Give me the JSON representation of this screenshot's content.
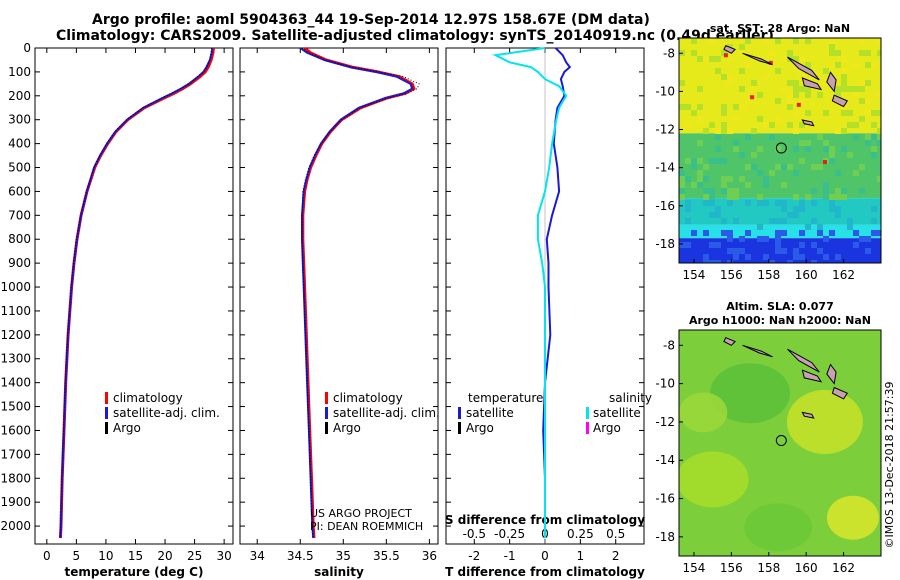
{
  "header": {
    "line1": "Argo profile: aoml 5904363_44 19-Sep-2014 12.97S 158.67E (DM data)",
    "line2": "Climatology: CARS2009. Satellite-adjusted climatology: synTS_20140919.nc (0.49d earlier)"
  },
  "colors": {
    "climatology": "#ff0000",
    "satellite": "#1a1ad6",
    "argo": "#000000",
    "sal_satellite": "#00e5ee",
    "sal_argo": "#ff00ff"
  },
  "depth_axis": {
    "ticks": [
      "0",
      "100",
      "200",
      "300",
      "400",
      "500",
      "600",
      "700",
      "800",
      "900",
      "1000",
      "1100",
      "1200",
      "1300",
      "1400",
      "1500",
      "1600",
      "1700",
      "1800",
      "1900",
      "2000"
    ],
    "range": [
      0,
      2075
    ]
  },
  "chart_data": [
    {
      "type": "line",
      "id": "temperature",
      "xlabel": "temperature (deg C)",
      "xlim": [
        -2,
        31.5
      ],
      "xticks": [
        "0",
        "5",
        "10",
        "15",
        "20",
        "25",
        "30"
      ],
      "ylim": [
        2075,
        0
      ],
      "legend": [
        "climatology",
        "satellite-adj. clim.",
        "Argo"
      ],
      "depths": [
        0,
        20,
        50,
        80,
        100,
        120,
        150,
        170,
        190,
        210,
        250,
        300,
        350,
        400,
        450,
        500,
        600,
        700,
        800,
        900,
        1000,
        1200,
        1400,
        1600,
        1800,
        2000,
        2050
      ],
      "series": [
        {
          "name": "climatology",
          "values": [
            28.2,
            28.1,
            27.8,
            27.3,
            26.8,
            25.9,
            24.3,
            23.0,
            21.5,
            19.8,
            16.5,
            13.7,
            11.7,
            10.3,
            9.1,
            8.1,
            6.8,
            5.8,
            5.1,
            4.6,
            4.2,
            3.6,
            3.2,
            2.9,
            2.6,
            2.4,
            2.3
          ]
        },
        {
          "name": "satellite-adj. clim.",
          "values": [
            28.0,
            27.9,
            27.6,
            27.0,
            26.5,
            25.6,
            24.0,
            22.7,
            21.2,
            19.5,
            16.3,
            13.6,
            11.6,
            10.2,
            9.0,
            8.0,
            6.8,
            5.8,
            5.1,
            4.6,
            4.2,
            3.6,
            3.2,
            2.9,
            2.6,
            2.4,
            2.3
          ]
        },
        {
          "name": "Argo",
          "values": [
            27.9,
            27.8,
            27.5,
            27.1,
            26.6,
            25.5,
            24.2,
            22.6,
            21.0,
            19.4,
            16.2,
            13.5,
            11.5,
            10.1,
            9.0,
            8.0,
            6.7,
            5.7,
            5.0,
            4.5,
            4.1,
            3.5,
            3.1,
            2.8,
            2.5,
            2.3,
            2.3
          ]
        }
      ],
      "annotations": []
    },
    {
      "type": "line",
      "id": "salinity",
      "xlabel": "salinity",
      "xlim": [
        33.8,
        36.1
      ],
      "xticks": [
        "34",
        "34.5",
        "35",
        "35.5",
        "36"
      ],
      "ylim": [
        2075,
        0
      ],
      "legend": [
        "climatology",
        "satellite-adj. clim.",
        "Argo"
      ],
      "depths": [
        0,
        20,
        50,
        80,
        100,
        120,
        150,
        170,
        190,
        210,
        250,
        300,
        350,
        400,
        450,
        500,
        550,
        600,
        700,
        800,
        900,
        1000,
        1200,
        1400,
        1600,
        1800,
        2000,
        2050
      ],
      "series": [
        {
          "name": "climatology",
          "values": [
            34.55,
            34.62,
            34.8,
            35.1,
            35.4,
            35.65,
            35.8,
            35.82,
            35.72,
            35.5,
            35.2,
            34.98,
            34.85,
            34.75,
            34.68,
            34.62,
            34.58,
            34.55,
            34.53,
            34.53,
            34.54,
            34.55,
            34.57,
            34.59,
            34.61,
            34.63,
            34.65,
            34.66
          ]
        },
        {
          "name": "satellite-adj. clim.",
          "values": [
            34.5,
            34.58,
            34.78,
            35.08,
            35.38,
            35.62,
            35.78,
            35.8,
            35.7,
            35.48,
            35.18,
            34.97,
            34.84,
            34.74,
            34.67,
            34.61,
            34.57,
            34.54,
            34.52,
            34.52,
            34.53,
            34.54,
            34.56,
            34.58,
            34.6,
            34.62,
            34.64,
            34.65
          ]
        },
        {
          "name": "Argo",
          "values": [
            34.52,
            34.6,
            34.8,
            35.1,
            35.42,
            35.7,
            35.88,
            35.86,
            35.74,
            35.52,
            35.2,
            34.98,
            34.85,
            34.74,
            34.66,
            34.6,
            34.56,
            34.53,
            34.52,
            34.52,
            34.53,
            34.54,
            34.56,
            34.58,
            34.6,
            34.62,
            34.64,
            34.65
          ]
        }
      ],
      "annotations": [
        "US ARGO PROJECT",
        "PI: DEAN ROEMMICH"
      ]
    },
    {
      "type": "line",
      "id": "differences",
      "xlabel": "T difference from climatology",
      "xlabel_top": "S difference from climatology",
      "xlim": [
        -2.8,
        2.8
      ],
      "xticks": [
        "-2",
        "-1",
        "0",
        "1",
        "2"
      ],
      "xticks_top": [
        "-0.5",
        "-0.25",
        "0",
        "0.25",
        "0.5"
      ],
      "ylim": [
        2075,
        0
      ],
      "legend_left": {
        "heading": "temperature",
        "items": [
          "satellite",
          "Argo"
        ]
      },
      "legend_right": {
        "heading": "salinity",
        "items": [
          "satellite",
          "Argo"
        ]
      },
      "depths": [
        0,
        30,
        60,
        80,
        100,
        130,
        160,
        200,
        250,
        300,
        400,
        500,
        600,
        700,
        800,
        900,
        1000,
        1200,
        1400,
        1600,
        1800,
        2000,
        2050
      ],
      "series": [
        {
          "name": "temperature satellite",
          "values": [
            0.3,
            0.5,
            0.6,
            0.7,
            0.55,
            0.45,
            0.5,
            0.55,
            0.35,
            0.3,
            0.25,
            0.35,
            0.4,
            0.2,
            0.05,
            0.1,
            0.1,
            0.15,
            0.0,
            -0.05,
            0.0,
            0.0,
            0.0
          ]
        },
        {
          "name": "salinity satellite",
          "values": [
            0.0,
            -0.35,
            -0.25,
            -0.1,
            -0.05,
            0.0,
            0.1,
            0.15,
            0.1,
            0.08,
            0.05,
            0.03,
            0.0,
            -0.05,
            -0.05,
            -0.02,
            0.0,
            0.0,
            0.0,
            0.0,
            0.0,
            0.0,
            0.0
          ]
        }
      ],
      "annotations": []
    },
    {
      "type": "heatmap",
      "id": "sst_map",
      "title": "sat. SST: 28 Argo: NaN",
      "xticks": [
        "154",
        "156",
        "158",
        "160",
        "162"
      ],
      "yticks": [
        "-8",
        "-10",
        "-12",
        "-14",
        "-16",
        "-18"
      ],
      "xlim": [
        153.2,
        164.0
      ],
      "ylim": [
        -19.0,
        -7.2
      ],
      "marker": {
        "lon": 158.67,
        "lat": -12.97
      }
    },
    {
      "type": "heatmap",
      "id": "sla_map",
      "title_line1": "Altim. SLA: 0.077",
      "title_line2": "Argo h1000: NaN h2000: NaN",
      "xticks": [
        "154",
        "156",
        "158",
        "160",
        "162"
      ],
      "yticks": [
        "-8",
        "-10",
        "-12",
        "-14",
        "-16",
        "-18"
      ],
      "xlim": [
        153.2,
        164.0
      ],
      "ylim": [
        -19.0,
        -7.2
      ],
      "marker": {
        "lon": 158.67,
        "lat": -12.97
      }
    }
  ],
  "watermark": "©IMOS 13-Dec-2018 21:57:39"
}
